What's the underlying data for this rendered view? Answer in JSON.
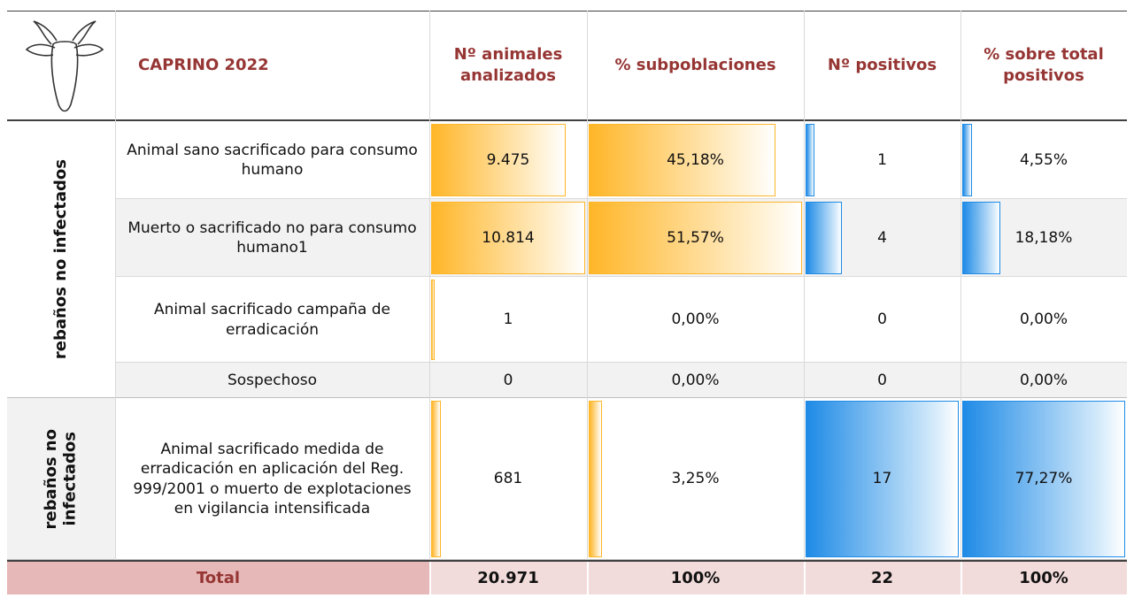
{
  "header": {
    "title": "CAPRINO 2022",
    "columns": [
      "Nº animales analizados",
      "% subpoblaciones",
      "Nº positivos",
      "% sobre total positivos"
    ]
  },
  "groups": [
    {
      "label": [
        "rebaños no infectados"
      ],
      "rows": [
        {
          "label": "Animal sano sacrificado para consumo humano",
          "cells": [
            {
              "value": 9475,
              "label": "9.475"
            },
            {
              "value": 45.18,
              "label": "45,18%"
            },
            1,
            {
              "value": 4.55,
              "label": "4,55%"
            }
          ]
        },
        {
          "label": "Muerto o sacrificado no para consumo humano1",
          "cells": [
            {
              "value": 10814,
              "label": "10.814"
            },
            {
              "value": 51.57,
              "label": "51,57%"
            },
            4,
            {
              "value": 18.18,
              "label": "18,18%"
            }
          ]
        },
        {
          "label": "Animal sacrificado  campaña de erradicación",
          "cells": [
            1,
            {
              "value": 0,
              "label": "0,00%"
            },
            0,
            {
              "value": 0,
              "label": "0,00%"
            }
          ]
        },
        {
          "label": "Sospechoso",
          "cells": [
            0,
            {
              "value": 0,
              "label": "0,00%"
            },
            0,
            {
              "value": 0,
              "label": "0,00%"
            }
          ]
        }
      ]
    },
    {
      "label": [
        "rebaños no",
        "infectados"
      ],
      "rows": [
        {
          "label": "Animal sacrificado  medida de erradicación en aplicación del Reg. 999/2001 o muerto de explotaciones en vigilancia intensificada",
          "cells": [
            681,
            {
              "value": 3.25,
              "label": "3,25%"
            },
            17,
            {
              "value": 77.27,
              "label": "77,27%"
            }
          ]
        }
      ]
    }
  ],
  "total": {
    "label": "Total",
    "cells": [
      "20.971",
      "100%",
      "22",
      "100%"
    ]
  }
}
